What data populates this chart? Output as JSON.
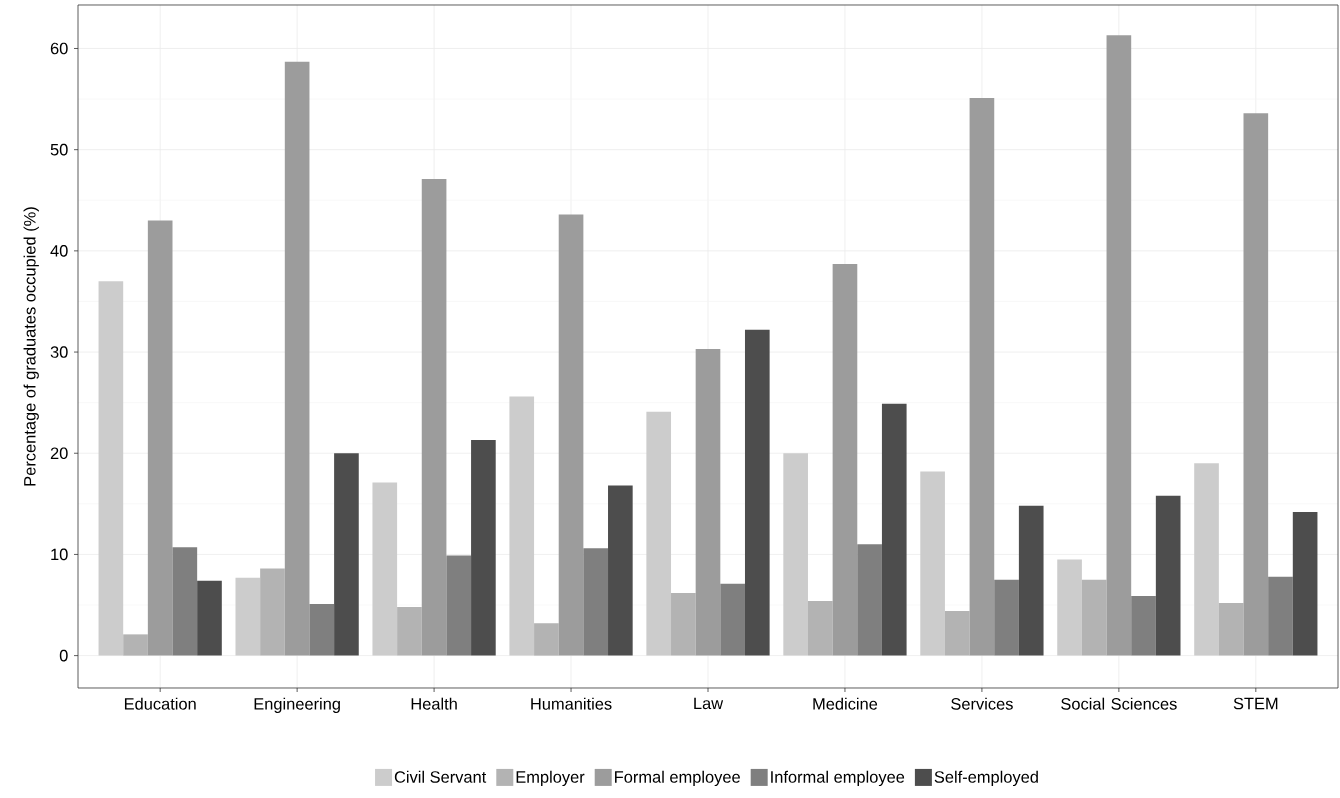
{
  "chart_data": {
    "type": "bar",
    "ylabel": "Percentage of graduates occupied (%)",
    "categories": [
      "Education",
      "Engineering",
      "Health",
      "Humanities",
      "Law",
      "Medicine",
      "Services",
      "Social Sciences",
      "STEM"
    ],
    "series": [
      {
        "name": "Civil Servant",
        "color": "#cccccc",
        "values": [
          37.0,
          7.7,
          17.1,
          25.6,
          24.1,
          20.0,
          18.2,
          9.5,
          19.0
        ]
      },
      {
        "name": "Employer",
        "color": "#b3b3b3",
        "values": [
          2.1,
          8.6,
          4.8,
          3.2,
          6.2,
          5.4,
          4.4,
          7.5,
          5.2
        ]
      },
      {
        "name": "Formal employee",
        "color": "#9c9c9c",
        "values": [
          43.0,
          58.7,
          47.1,
          43.6,
          30.3,
          38.7,
          55.1,
          61.3,
          53.6
        ]
      },
      {
        "name": "Informal employee",
        "color": "#7f7f7f",
        "values": [
          10.7,
          5.1,
          9.9,
          10.6,
          7.1,
          11.0,
          7.5,
          5.9,
          7.8
        ]
      },
      {
        "name": "Self-employed",
        "color": "#4d4d4d",
        "values": [
          7.4,
          20.0,
          21.3,
          16.8,
          32.2,
          24.9,
          14.8,
          15.8,
          14.2
        ]
      }
    ],
    "ylim": [
      -3.2,
      64.3
    ],
    "yticks": [
      0,
      10,
      20,
      30,
      40,
      50,
      60
    ],
    "grid": true,
    "legend": "bottom"
  }
}
